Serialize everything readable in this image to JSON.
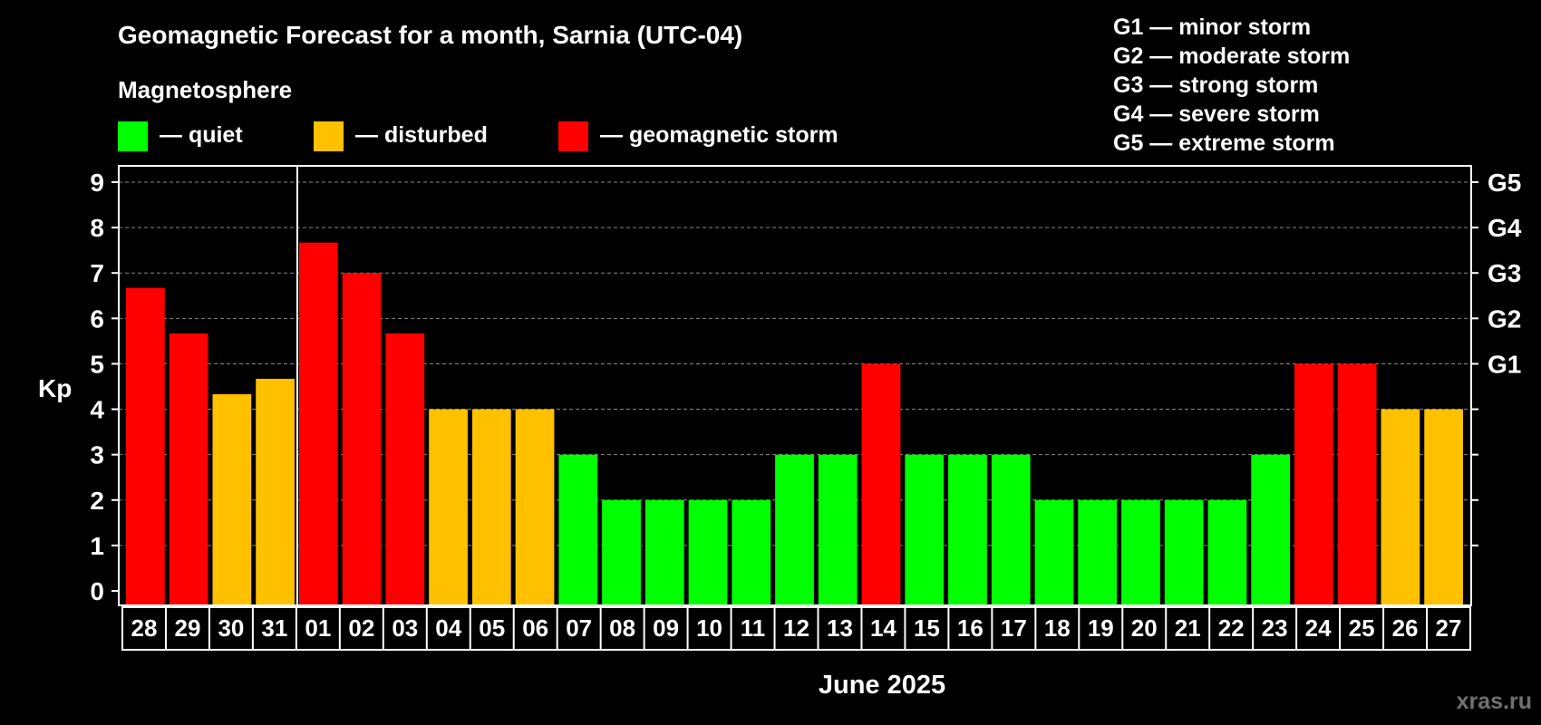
{
  "chart_data": {
    "type": "bar",
    "title": "Geomagnetic Forecast for a month, Sarnia (UTC-04)",
    "legend_title": "Magnetosphere",
    "legend": [
      {
        "label": "— quiet",
        "color": "#00ff00"
      },
      {
        "label": "— disturbed",
        "color": "#ffc000"
      },
      {
        "label": "— geomagnetic storm",
        "color": "#ff0000"
      }
    ],
    "storm_scale": [
      "G1 — minor storm",
      "G2 — moderate storm",
      "G3 — strong storm",
      "G4 — severe storm",
      "G5 — extreme storm"
    ],
    "ylabel": "Kp",
    "xlabel": "June 2025",
    "ylim": [
      0,
      9
    ],
    "yticks": [
      0,
      1,
      2,
      3,
      4,
      5,
      6,
      7,
      8,
      9
    ],
    "right_ticks": [
      {
        "value": 5,
        "label": "G1"
      },
      {
        "value": 6,
        "label": "G2"
      },
      {
        "value": 7,
        "label": "G3"
      },
      {
        "value": 8,
        "label": "G4"
      },
      {
        "value": 9,
        "label": "G5"
      }
    ],
    "categories": [
      "28",
      "29",
      "30",
      "31",
      "01",
      "02",
      "03",
      "04",
      "05",
      "06",
      "07",
      "08",
      "09",
      "10",
      "11",
      "12",
      "13",
      "14",
      "15",
      "16",
      "17",
      "18",
      "19",
      "20",
      "21",
      "22",
      "23",
      "24",
      "25",
      "26",
      "27"
    ],
    "values": [
      6.67,
      5.67,
      4.33,
      4.67,
      7.67,
      7,
      5.67,
      4,
      4,
      4,
      3,
      2,
      2,
      2,
      2,
      3,
      3,
      5,
      3,
      3,
      3,
      2,
      2,
      2,
      2,
      2,
      3,
      5,
      5,
      4,
      4
    ],
    "month_divider_after": "31",
    "colors": {
      "quiet": "#00ff00",
      "disturbed": "#ffc000",
      "storm": "#ff0000",
      "grid": "#888888"
    }
  },
  "watermark": "xras.ru"
}
